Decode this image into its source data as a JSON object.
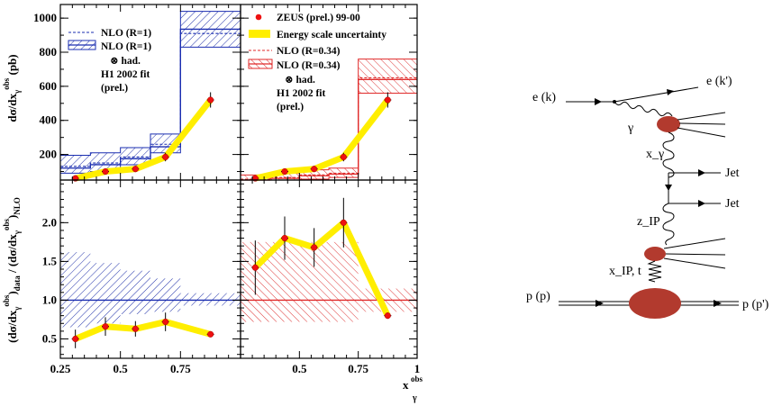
{
  "chart_data": [
    {
      "type": "step",
      "panel": "top-left",
      "ylabel": "dσ/dx_γ^obs (pb)",
      "xlim": [
        0.25,
        1.0
      ],
      "ylim": [
        50,
        1080
      ],
      "x": [
        0.3125,
        0.4375,
        0.5625,
        0.6875,
        0.875
      ],
      "data": [
        60,
        100,
        115,
        185,
        520
      ],
      "data_err": [
        12,
        15,
        18,
        25,
        45
      ],
      "bin_edges": [
        0.25,
        0.375,
        0.5,
        0.625,
        0.75,
        1.0
      ],
      "nlo_r1_dashed": [
        130,
        150,
        185,
        260,
        910
      ],
      "band_low": [
        90,
        100,
        140,
        210,
        830
      ],
      "band_high": [
        195,
        210,
        240,
        320,
        1040
      ],
      "nlo_r1_solid": [
        120,
        140,
        175,
        245,
        935
      ],
      "legend": [
        "NLO (R=1)",
        "NLO (R=1)",
        "⊗ had.",
        "H1 2002 fit",
        "(prel.)"
      ],
      "ytick_labels": [
        "200",
        "400",
        "600",
        "800",
        "1000"
      ]
    },
    {
      "type": "step",
      "panel": "top-right",
      "xlim": [
        0.25,
        1.0
      ],
      "ylim": [
        50,
        1080
      ],
      "x": [
        0.3125,
        0.4375,
        0.5625,
        0.6875,
        0.875
      ],
      "data": [
        60,
        100,
        115,
        185,
        520
      ],
      "data_err": [
        12,
        15,
        18,
        25,
        45
      ],
      "bin_edges": [
        0.25,
        0.375,
        0.5,
        0.625,
        0.75,
        1.0
      ],
      "nlo_r034_dashed": [
        55,
        65,
        80,
        90,
        650
      ],
      "band_low": [
        35,
        40,
        55,
        65,
        560
      ],
      "band_high": [
        80,
        90,
        110,
        120,
        760
      ],
      "nlo_r034_solid": [
        50,
        60,
        75,
        85,
        640
      ],
      "legend": [
        "ZEUS (prel.) 99-00",
        "Energy scale uncertainty",
        "NLO (R=0.34)",
        "NLO (R=0.34)",
        "⊗ had.",
        "H1 2002 fit",
        "(prel.)"
      ]
    },
    {
      "type": "ratio",
      "panel": "bottom-left",
      "ylabel": "(dσ/dx_γ^obs)_data / (dσ/dx_γ^obs)_NLO",
      "xlim": [
        0.25,
        1.0
      ],
      "ylim": [
        0.25,
        2.55
      ],
      "x": [
        0.3125,
        0.4375,
        0.5625,
        0.6875,
        0.875
      ],
      "ratio": [
        0.5,
        0.66,
        0.63,
        0.72,
        0.56
      ],
      "ratio_err": [
        0.12,
        0.12,
        0.1,
        0.12,
        0.03
      ],
      "band_low": [
        0.65,
        0.7,
        0.82,
        0.85,
        0.93
      ],
      "band_high": [
        1.62,
        1.48,
        1.38,
        1.28,
        1.09
      ],
      "reference": 1.0,
      "ytick_labels": [
        "0.5",
        "1.0",
        "1.5",
        "2.0"
      ]
    },
    {
      "type": "ratio",
      "panel": "bottom-right",
      "xlim": [
        0.25,
        1.0
      ],
      "ylim": [
        0.25,
        2.55
      ],
      "x": [
        0.3125,
        0.4375,
        0.5625,
        0.6875,
        0.875
      ],
      "ratio": [
        1.42,
        1.8,
        1.68,
        2.0,
        0.8
      ],
      "ratio_err": [
        0.35,
        0.28,
        0.25,
        0.32,
        0.04
      ],
      "band_low": [
        0.72,
        0.72,
        0.72,
        0.72,
        0.85
      ],
      "band_high": [
        1.75,
        1.75,
        1.75,
        1.75,
        1.15
      ],
      "reference": 1.0,
      "xlabel": "x_γ^obs",
      "xtick_labels": [
        "0.25",
        "0.5",
        "0.75",
        "1"
      ],
      "left_xtick_labels": [
        "0.25",
        "0.5",
        "0.75"
      ]
    }
  ],
  "diagram": {
    "e_in": "e (k)",
    "e_out": "e (k')",
    "gamma": "γ",
    "x_gamma": "x_γ",
    "jet1": "Jet",
    "jet2": "Jet",
    "z_pomeron": "z_IP",
    "x_pomeron_t": "x_IP, t",
    "p_in": "p (p)",
    "p_out": "p (p')"
  }
}
